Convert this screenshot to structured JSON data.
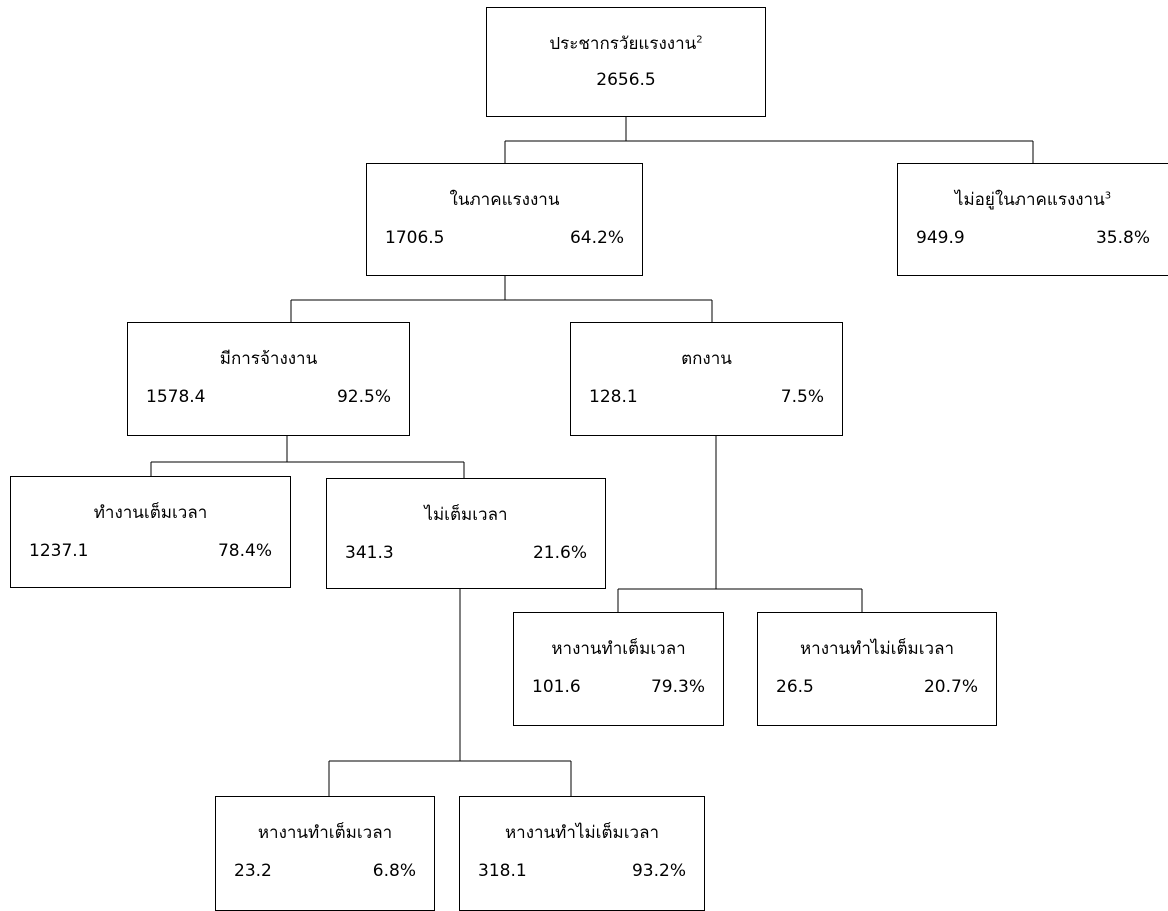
{
  "nodes": {
    "population": {
      "label": "ประชากรวัยแรงงาน",
      "note": "2",
      "value": "2656.5"
    },
    "in_labor_force": {
      "label": "ในภาคแรงงาน",
      "value": "1706.5",
      "percent": "64.2%"
    },
    "not_in_labor_force": {
      "label": "ไม่อยู่ในภาคแรงงาน",
      "note": "3",
      "value": "949.9",
      "percent": "35.8%"
    },
    "employed": {
      "label": "มีการจ้างงาน",
      "value": "1578.4",
      "percent": "92.5%"
    },
    "unemployed": {
      "label": "ตกงาน",
      "value": "128.1",
      "percent": "7.5%"
    },
    "full_time": {
      "label": "ทำงานเต็มเวลา",
      "value": "1237.1",
      "percent": "78.4%"
    },
    "part_time": {
      "label": "ไม่เต็มเวลา",
      "value": "341.3",
      "percent": "21.6%"
    },
    "unemp_seek_full": {
      "label": "หางานทำเต็มเวลา",
      "value": "101.6",
      "percent": "79.3%"
    },
    "unemp_seek_part": {
      "label": "หางานทำไม่เต็มเวลา",
      "value": "26.5",
      "percent": "20.7%"
    },
    "pt_seek_full": {
      "label": "หางานทำเต็มเวลา",
      "value": "23.2",
      "percent": "6.8%"
    },
    "pt_seek_part": {
      "label": "หางานทำไม่เต็มเวลา",
      "value": "318.1",
      "percent": "93.2%"
    }
  }
}
